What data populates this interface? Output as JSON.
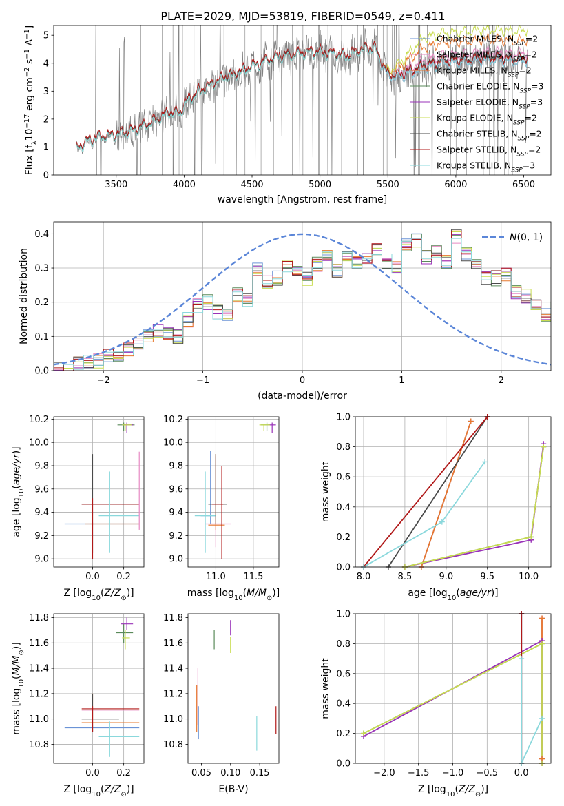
{
  "figure_title": "PLATE=2029, MJD=53819, FIBERID=0549, z=0.411",
  "series_styles": [
    {
      "name": "Chabrier MILES, N_SSP=2",
      "color": "#6b93d6"
    },
    {
      "name": "Salpeter MILES, N_SSP=2",
      "color": "#e78ac3"
    },
    {
      "name": "Kroupa MILES, N_SSP=2",
      "color": "#e6782e"
    },
    {
      "name": "Chabrier ELODIE, N_SSP=3",
      "color": "#5a8a5a"
    },
    {
      "name": "Salpeter ELODIE, N_SSP=3",
      "color": "#9932b8"
    },
    {
      "name": "Kroupa ELODIE, N_SSP=2",
      "color": "#c8dc50"
    },
    {
      "name": "Chabrier STELIB, N_SSP=2",
      "color": "#4a4a4a"
    },
    {
      "name": "Salpeter STELIB, N_SSP=2",
      "color": "#b01818"
    },
    {
      "name": "Kroupa STELIB, N_SSP=3",
      "color": "#8ad8dc"
    }
  ],
  "data_color": "#808080",
  "normal_color": "#5b86d8",
  "chart_data": [
    {
      "id": "spectrum",
      "type": "line",
      "xlabel": "wavelength [Angstrom, rest frame]",
      "ylabel": "Flux [f_λ 10^-17 erg cm^-2 s^-1 A^-1]",
      "xlim": [
        3040,
        6700
      ],
      "ylim": [
        0,
        5.35
      ],
      "xticks": [
        3500,
        4000,
        4500,
        5000,
        5500,
        6000,
        6500
      ],
      "yticks": [
        0,
        1,
        2,
        3,
        4,
        5
      ],
      "legend_position": "upper right",
      "continuum_x": [
        3210,
        3300,
        3400,
        3500,
        3600,
        3700,
        3800,
        3900,
        3970,
        4000,
        4100,
        4200,
        4300,
        4400,
        4500,
        4600,
        4700,
        4800,
        4900,
        5000,
        5100,
        5200,
        5300,
        5400,
        5500,
        5600,
        5700,
        5800,
        5900,
        6000,
        6100,
        6200,
        6300,
        6400,
        6530
      ],
      "continuum_y": [
        0.9,
        1.2,
        1.35,
        1.4,
        1.5,
        1.7,
        1.95,
        2.2,
        2.15,
        2.5,
        2.9,
        3.2,
        3.45,
        3.6,
        3.85,
        4.05,
        4.2,
        4.25,
        4.35,
        4.35,
        4.3,
        4.2,
        4.45,
        4.5,
        3.5,
        3.5,
        3.7,
        3.85,
        4.0,
        4.0,
        4.05,
        4.1,
        4.1,
        4.05,
        4.1
      ],
      "red_offsets": [
        0.0,
        0.0,
        0.05,
        0.0,
        0.0,
        0.0,
        0.05,
        0.1,
        0.0
      ],
      "red_region_start": 5440,
      "red_region_end": 5760,
      "red_region_offsets": [
        0.0,
        0.3,
        0.7,
        0.0,
        0.0,
        1.1,
        0.1,
        0.0,
        0.0
      ]
    },
    {
      "id": "residuals",
      "type": "histogram",
      "xlabel": "(data-model)/error",
      "ylabel": "Normed distribution",
      "xlim": [
        -2.5,
        2.5
      ],
      "ylim": [
        0,
        0.435
      ],
      "xticks": [
        -2,
        -1,
        0,
        1,
        2
      ],
      "yticks": [
        0.0,
        0.1,
        0.2,
        0.3,
        0.4
      ],
      "bin_start": -2.5,
      "bin_width": 0.1,
      "base_values": [
        0.01,
        0.005,
        0.02,
        0.03,
        0.03,
        0.04,
        0.05,
        0.06,
        0.08,
        0.1,
        0.12,
        0.11,
        0.1,
        0.15,
        0.19,
        0.2,
        0.17,
        0.16,
        0.22,
        0.21,
        0.3,
        0.26,
        0.27,
        0.31,
        0.3,
        0.27,
        0.31,
        0.33,
        0.29,
        0.33,
        0.32,
        0.33,
        0.36,
        0.32,
        0.3,
        0.37,
        0.38,
        0.33,
        0.35,
        0.32,
        0.39,
        0.34,
        0.31,
        0.27,
        0.27,
        0.28,
        0.23,
        0.22,
        0.2,
        0.16,
        0.18,
        0.17,
        0.14,
        0.16,
        0.13,
        0.14,
        0.12,
        0.1,
        0.11,
        0.09,
        0.1,
        0.08,
        0.09
      ],
      "normal": {
        "label": "N(0,1)",
        "mean": 0,
        "sigma": 1
      },
      "legend_position": "upper right"
    },
    {
      "id": "age-vs-metallicity",
      "type": "errorbar",
      "xlabel": "Z [log10(Z/Z⊙)]",
      "ylabel": "age [log10(age/yr)]",
      "xlim": [
        -0.25,
        0.33
      ],
      "ylim": [
        8.93,
        10.22
      ],
      "xticks": [
        0.0,
        0.2
      ],
      "yticks": [
        9.0,
        9.2,
        9.4,
        9.6,
        9.8,
        10.0,
        10.2
      ],
      "points": [
        {
          "s": 0,
          "x": 0.0,
          "y": 9.3,
          "xlo": -0.18,
          "xhi": 0.3,
          "ylo": 9.3,
          "yhi": 9.3
        },
        {
          "s": 2,
          "x": 0.0,
          "y": 9.3,
          "xlo": -0.05,
          "xhi": 0.3,
          "ylo": 9.29,
          "yhi": 9.31
        },
        {
          "s": 6,
          "x": 0.0,
          "y": 9.47,
          "xlo": -0.07,
          "xhi": 0.3,
          "ylo": 9.05,
          "yhi": 9.9
        },
        {
          "s": 7,
          "x": 0.0,
          "y": 9.47,
          "xlo": -0.07,
          "xhi": 0.3,
          "ylo": 9.0,
          "yhi": 9.52
        },
        {
          "s": 8,
          "x": 0.11,
          "y": 9.37,
          "xlo": 0.04,
          "xhi": 0.3,
          "ylo": 9.05,
          "yhi": 9.75
        },
        {
          "s": 1,
          "x": 0.3,
          "y": 9.45,
          "xlo": 0.3,
          "xhi": 0.3,
          "ylo": 9.25,
          "yhi": 9.92
        },
        {
          "s": 3,
          "x": 0.2,
          "y": 10.15,
          "xlo": 0.16,
          "xhi": 0.27,
          "ylo": 10.1,
          "yhi": 10.17
        },
        {
          "s": 4,
          "x": 0.22,
          "y": 10.15,
          "xlo": 0.2,
          "xhi": 0.26,
          "ylo": 10.08,
          "yhi": 10.17
        },
        {
          "s": 5,
          "x": 0.21,
          "y": 10.15,
          "xlo": 0.19,
          "xhi": 0.25,
          "ylo": 10.1,
          "yhi": 10.16
        }
      ]
    },
    {
      "id": "age-vs-mass",
      "type": "errorbar",
      "xlabel": "mass [log10(M/M⊙)]",
      "ylabel": "",
      "xlim": [
        10.63,
        11.84
      ],
      "ylim": [
        8.93,
        10.22
      ],
      "xticks": [
        11.0,
        11.5
      ],
      "yticks": [
        9.0,
        9.2,
        9.4,
        9.6,
        9.8,
        10.0,
        10.2
      ],
      "points": [
        {
          "s": 0,
          "x": 10.93,
          "y": 9.37,
          "xlo": 10.8,
          "xhi": 11.0,
          "ylo": 9.3,
          "yhi": 9.93
        },
        {
          "s": 1,
          "x": 11.0,
          "y": 9.3,
          "xlo": 10.85,
          "xhi": 11.2,
          "ylo": 9.1,
          "yhi": 9.88
        },
        {
          "s": 2,
          "x": 11.0,
          "y": 9.29,
          "xlo": 10.9,
          "xhi": 11.12,
          "ylo": 9.25,
          "yhi": 9.9
        },
        {
          "s": 8,
          "x": 10.86,
          "y": 9.37,
          "xlo": 10.72,
          "xhi": 11.0,
          "ylo": 9.05,
          "yhi": 9.75
        },
        {
          "s": 6,
          "x": 11.0,
          "y": 9.47,
          "xlo": 10.9,
          "xhi": 11.15,
          "ylo": 9.3,
          "yhi": 9.9
        },
        {
          "s": 7,
          "x": 11.08,
          "y": 9.47,
          "xlo": 10.95,
          "xhi": 11.1,
          "ylo": 9.0,
          "yhi": 9.8
        },
        {
          "s": 3,
          "x": 11.68,
          "y": 10.15,
          "xlo": 11.6,
          "xhi": 11.72,
          "ylo": 10.1,
          "yhi": 10.17
        },
        {
          "s": 4,
          "x": 11.75,
          "y": 10.15,
          "xlo": 11.7,
          "xhi": 11.8,
          "ylo": 10.08,
          "yhi": 10.17
        },
        {
          "s": 5,
          "x": 11.64,
          "y": 10.15,
          "xlo": 11.58,
          "xhi": 11.72,
          "ylo": 10.1,
          "yhi": 10.16
        }
      ]
    },
    {
      "id": "mass-weight-vs-age",
      "type": "line",
      "xlabel": "age [log10(age/yr)]",
      "ylabel": "mass weight",
      "xlim": [
        7.9,
        10.27
      ],
      "ylim": [
        0,
        1
      ],
      "xticks": [
        8.0,
        8.5,
        9.0,
        9.5,
        10.0
      ],
      "yticks": [
        0.0,
        0.2,
        0.4,
        0.6,
        0.8,
        1.0
      ],
      "series": [
        {
          "s": 0,
          "x": [
            8.7,
            9.3
          ],
          "y": [
            0.0,
            0.97
          ]
        },
        {
          "s": 1,
          "x": [
            8.7,
            9.3
          ],
          "y": [
            0.0,
            0.97
          ]
        },
        {
          "s": 2,
          "x": [
            8.7,
            9.3
          ],
          "y": [
            0.0,
            0.97
          ]
        },
        {
          "s": 3,
          "x": [
            8.5,
            10.03,
            10.18
          ],
          "y": [
            0.0,
            0.2,
            0.8
          ]
        },
        {
          "s": 4,
          "x": [
            8.5,
            10.03,
            10.18
          ],
          "y": [
            0.0,
            0.18,
            0.82
          ]
        },
        {
          "s": 5,
          "x": [
            8.5,
            10.03,
            10.18
          ],
          "y": [
            0.0,
            0.2,
            0.8
          ]
        },
        {
          "s": 6,
          "x": [
            8.3,
            9.5
          ],
          "y": [
            0.0,
            1.0
          ]
        },
        {
          "s": 7,
          "x": [
            8.0,
            9.5
          ],
          "y": [
            0.0,
            1.0
          ]
        },
        {
          "s": 8,
          "x": [
            8.0,
            8.95,
            9.47
          ],
          "y": [
            0.0,
            0.3,
            0.7
          ]
        }
      ]
    },
    {
      "id": "mass-vs-metallicity",
      "type": "errorbar",
      "xlabel": "Z [log10(Z/Z⊙)]",
      "ylabel": "mass [log10(M/M⊙)]",
      "xlim": [
        -0.25,
        0.33
      ],
      "ylim": [
        10.65,
        11.83
      ],
      "xticks": [
        0.0,
        0.2
      ],
      "yticks": [
        10.8,
        11.0,
        11.2,
        11.4,
        11.6,
        11.8
      ],
      "points": [
        {
          "s": 0,
          "x": 0.0,
          "y": 10.93,
          "xlo": -0.18,
          "xhi": 0.3,
          "ylo": 10.9,
          "yhi": 10.95
        },
        {
          "s": 1,
          "x": 0.0,
          "y": 11.07,
          "xlo": -0.07,
          "xhi": 0.3,
          "ylo": 11.0,
          "yhi": 11.1
        },
        {
          "s": 2,
          "x": 0.0,
          "y": 10.97,
          "xlo": -0.07,
          "xhi": 0.3,
          "ylo": 10.9,
          "yhi": 11.2
        },
        {
          "s": 6,
          "x": 0.0,
          "y": 11.0,
          "xlo": -0.07,
          "xhi": 0.17,
          "ylo": 10.9,
          "yhi": 11.2
        },
        {
          "s": 7,
          "x": 0.0,
          "y": 11.08,
          "xlo": -0.07,
          "xhi": 0.3,
          "ylo": 10.9,
          "yhi": 11.1
        },
        {
          "s": 8,
          "x": 0.11,
          "y": 10.86,
          "xlo": 0.04,
          "xhi": 0.3,
          "ylo": 10.7,
          "yhi": 10.98
        },
        {
          "s": 3,
          "x": 0.2,
          "y": 11.68,
          "xlo": 0.15,
          "xhi": 0.26,
          "ylo": 11.6,
          "yhi": 11.75
        },
        {
          "s": 4,
          "x": 0.22,
          "y": 11.75,
          "xlo": 0.18,
          "xhi": 0.26,
          "ylo": 11.7,
          "yhi": 11.8
        },
        {
          "s": 5,
          "x": 0.21,
          "y": 11.64,
          "xlo": 0.19,
          "xhi": 0.24,
          "ylo": 11.55,
          "yhi": 11.7
        }
      ]
    },
    {
      "id": "mass-vs-extinction",
      "type": "errorbar",
      "xlabel": "E(B-V)",
      "ylabel": "",
      "xlim": [
        0.027,
        0.183
      ],
      "ylim": [
        10.65,
        11.83
      ],
      "xticks": [
        0.05,
        0.1,
        0.15
      ],
      "yticks": [
        10.8,
        11.0,
        11.2,
        11.4,
        11.6,
        11.8
      ],
      "points": [
        {
          "s": 0,
          "x": 0.045,
          "y": 11.0,
          "xlo": 0.045,
          "xhi": 0.045,
          "ylo": 10.84,
          "yhi": 11.1
        },
        {
          "s": 1,
          "x": 0.044,
          "y": 11.15,
          "xlo": 0.044,
          "xhi": 0.044,
          "ylo": 10.95,
          "yhi": 11.4
        },
        {
          "s": 2,
          "x": 0.042,
          "y": 11.05,
          "xlo": 0.042,
          "xhi": 0.042,
          "ylo": 10.9,
          "yhi": 11.27
        },
        {
          "s": 3,
          "x": 0.072,
          "y": 11.62,
          "xlo": 0.072,
          "xhi": 0.072,
          "ylo": 11.55,
          "yhi": 11.7
        },
        {
          "s": 4,
          "x": 0.1,
          "y": 11.72,
          "xlo": 0.1,
          "xhi": 0.1,
          "ylo": 11.66,
          "yhi": 11.78
        },
        {
          "s": 5,
          "x": 0.1,
          "y": 11.6,
          "xlo": 0.1,
          "xhi": 0.1,
          "ylo": 11.52,
          "yhi": 11.65
        },
        {
          "s": 8,
          "x": 0.145,
          "y": 10.86,
          "xlo": 0.145,
          "xhi": 0.145,
          "ylo": 10.75,
          "yhi": 11.02
        },
        {
          "s": 7,
          "x": 0.178,
          "y": 11.0,
          "xlo": 0.178,
          "xhi": 0.178,
          "ylo": 10.88,
          "yhi": 11.1
        }
      ]
    },
    {
      "id": "mass-weight-vs-metallicity",
      "type": "line",
      "xlabel": "Z [log10(Z/Z⊙)]",
      "ylabel": "mass weight",
      "xlim": [
        -2.42,
        0.43
      ],
      "ylim": [
        0,
        1
      ],
      "xticks": [
        -2.0,
        -1.5,
        -1.0,
        -0.5,
        0.0
      ],
      "yticks": [
        0.0,
        0.2,
        0.4,
        0.6,
        0.8,
        1.0
      ],
      "series": [
        {
          "s": 0,
          "x": [
            0.0,
            0.0
          ],
          "y": [
            0.0,
            1.0
          ]
        },
        {
          "s": 1,
          "x": [
            0.3,
            0.3
          ],
          "y": [
            0.03,
            0.97
          ]
        },
        {
          "s": 2,
          "x": [
            0.3,
            0.3
          ],
          "y": [
            0.03,
            0.97
          ]
        },
        {
          "s": 3,
          "x": [
            -2.3,
            0.3,
            0.3
          ],
          "y": [
            0.2,
            0.8,
            0.0
          ]
        },
        {
          "s": 4,
          "x": [
            -2.3,
            0.3,
            0.3
          ],
          "y": [
            0.18,
            0.82,
            0.0
          ]
        },
        {
          "s": 5,
          "x": [
            -2.3,
            0.3,
            0.3
          ],
          "y": [
            0.2,
            0.8,
            0.0
          ]
        },
        {
          "s": 6,
          "x": [
            0.0,
            0.0
          ],
          "y": [
            0.0,
            1.0
          ]
        },
        {
          "s": 7,
          "x": [
            0.0,
            0.0
          ],
          "y": [
            0.0,
            1.0
          ]
        },
        {
          "s": 8,
          "x": [
            0.0,
            0.0,
            0.3
          ],
          "y": [
            0.7,
            0.0,
            0.3
          ]
        }
      ]
    }
  ]
}
